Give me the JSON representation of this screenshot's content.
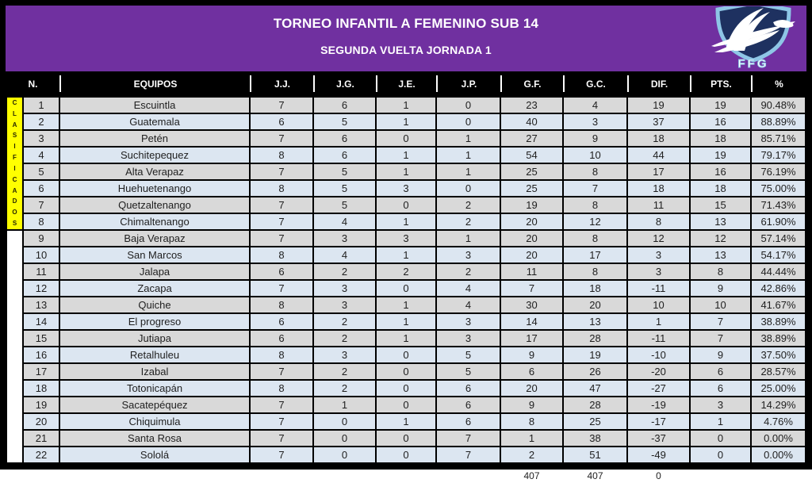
{
  "header": {
    "title": "TORNEO INFANTIL A FEMENINO SUB 14",
    "subtitle": "SEGUNDA VUELTA JORNADA 1",
    "logo_text": "FFG"
  },
  "table": {
    "classified_label": "CLASIFICADOS",
    "columns": [
      "N.",
      "EQUIPOS",
      "J.J.",
      "J.G.",
      "J.E.",
      "J.P.",
      "G.F.",
      "G.C.",
      "DIF.",
      "PTS.",
      "%"
    ],
    "rows": [
      {
        "n": "1",
        "team": "Escuintla",
        "jj": "7",
        "jg": "6",
        "je": "1",
        "jp": "0",
        "gf": "23",
        "gc": "4",
        "dif": "19",
        "pts": "19",
        "pct": "90.48%"
      },
      {
        "n": "2",
        "team": "Guatemala",
        "jj": "6",
        "jg": "5",
        "je": "1",
        "jp": "0",
        "gf": "40",
        "gc": "3",
        "dif": "37",
        "pts": "16",
        "pct": "88.89%"
      },
      {
        "n": "3",
        "team": "Petén",
        "jj": "7",
        "jg": "6",
        "je": "0",
        "jp": "1",
        "gf": "27",
        "gc": "9",
        "dif": "18",
        "pts": "18",
        "pct": "85.71%"
      },
      {
        "n": "4",
        "team": "Suchitepequez",
        "jj": "8",
        "jg": "6",
        "je": "1",
        "jp": "1",
        "gf": "54",
        "gc": "10",
        "dif": "44",
        "pts": "19",
        "pct": "79.17%"
      },
      {
        "n": "5",
        "team": "Alta Verapaz",
        "jj": "7",
        "jg": "5",
        "je": "1",
        "jp": "1",
        "gf": "25",
        "gc": "8",
        "dif": "17",
        "pts": "16",
        "pct": "76.19%"
      },
      {
        "n": "6",
        "team": "Huehuetenango",
        "jj": "8",
        "jg": "5",
        "je": "3",
        "jp": "0",
        "gf": "25",
        "gc": "7",
        "dif": "18",
        "pts": "18",
        "pct": "75.00%"
      },
      {
        "n": "7",
        "team": "Quetzaltenango",
        "jj": "7",
        "jg": "5",
        "je": "0",
        "jp": "2",
        "gf": "19",
        "gc": "8",
        "dif": "11",
        "pts": "15",
        "pct": "71.43%"
      },
      {
        "n": "8",
        "team": "Chimaltenango",
        "jj": "7",
        "jg": "4",
        "je": "1",
        "jp": "2",
        "gf": "20",
        "gc": "12",
        "dif": "8",
        "pts": "13",
        "pct": "61.90%"
      },
      {
        "n": "9",
        "team": "Baja Verapaz",
        "jj": "7",
        "jg": "3",
        "je": "3",
        "jp": "1",
        "gf": "20",
        "gc": "8",
        "dif": "12",
        "pts": "12",
        "pct": "57.14%"
      },
      {
        "n": "10",
        "team": "San Marcos",
        "jj": "8",
        "jg": "4",
        "je": "1",
        "jp": "3",
        "gf": "20",
        "gc": "17",
        "dif": "3",
        "pts": "13",
        "pct": "54.17%"
      },
      {
        "n": "11",
        "team": "Jalapa",
        "jj": "6",
        "jg": "2",
        "je": "2",
        "jp": "2",
        "gf": "11",
        "gc": "8",
        "dif": "3",
        "pts": "8",
        "pct": "44.44%"
      },
      {
        "n": "12",
        "team": "Zacapa",
        "jj": "7",
        "jg": "3",
        "je": "0",
        "jp": "4",
        "gf": "7",
        "gc": "18",
        "dif": "-11",
        "pts": "9",
        "pct": "42.86%"
      },
      {
        "n": "13",
        "team": "Quiche",
        "jj": "8",
        "jg": "3",
        "je": "1",
        "jp": "4",
        "gf": "30",
        "gc": "20",
        "dif": "10",
        "pts": "10",
        "pct": "41.67%"
      },
      {
        "n": "14",
        "team": "El progreso",
        "jj": "6",
        "jg": "2",
        "je": "1",
        "jp": "3",
        "gf": "14",
        "gc": "13",
        "dif": "1",
        "pts": "7",
        "pct": "38.89%"
      },
      {
        "n": "15",
        "team": "Jutiapa",
        "jj": "6",
        "jg": "2",
        "je": "1",
        "jp": "3",
        "gf": "17",
        "gc": "28",
        "dif": "-11",
        "pts": "7",
        "pct": "38.89%"
      },
      {
        "n": "16",
        "team": "Retalhuleu",
        "jj": "8",
        "jg": "3",
        "je": "0",
        "jp": "5",
        "gf": "9",
        "gc": "19",
        "dif": "-10",
        "pts": "9",
        "pct": "37.50%"
      },
      {
        "n": "17",
        "team": "Izabal",
        "jj": "7",
        "jg": "2",
        "je": "0",
        "jp": "5",
        "gf": "6",
        "gc": "26",
        "dif": "-20",
        "pts": "6",
        "pct": "28.57%"
      },
      {
        "n": "18",
        "team": "Totonicapán",
        "jj": "8",
        "jg": "2",
        "je": "0",
        "jp": "6",
        "gf": "20",
        "gc": "47",
        "dif": "-27",
        "pts": "6",
        "pct": "25.00%"
      },
      {
        "n": "19",
        "team": "Sacatepéquez",
        "jj": "7",
        "jg": "1",
        "je": "0",
        "jp": "6",
        "gf": "9",
        "gc": "28",
        "dif": "-19",
        "pts": "3",
        "pct": "14.29%"
      },
      {
        "n": "20",
        "team": "Chiquimula",
        "jj": "7",
        "jg": "0",
        "je": "1",
        "jp": "6",
        "gf": "8",
        "gc": "25",
        "dif": "-17",
        "pts": "1",
        "pct": "4.76%"
      },
      {
        "n": "21",
        "team": "Santa Rosa",
        "jj": "7",
        "jg": "0",
        "je": "0",
        "jp": "7",
        "gf": "1",
        "gc": "38",
        "dif": "-37",
        "pts": "0",
        "pct": "0.00%"
      },
      {
        "n": "22",
        "team": "Sololá",
        "jj": "7",
        "jg": "0",
        "je": "0",
        "jp": "7",
        "gf": "2",
        "gc": "51",
        "dif": "-49",
        "pts": "0",
        "pct": "0.00%"
      }
    ]
  },
  "totals": {
    "gf": "407",
    "gc": "407",
    "dif": "0"
  },
  "colors": {
    "header_purple": "#7030a0",
    "header_black": "#000000",
    "row_gray": "#d9d9d9",
    "row_blue": "#dce6f1",
    "classified_yellow": "#ffff00",
    "shield_navy": "#1e3160",
    "shield_light_blue": "#8ec6e6"
  }
}
